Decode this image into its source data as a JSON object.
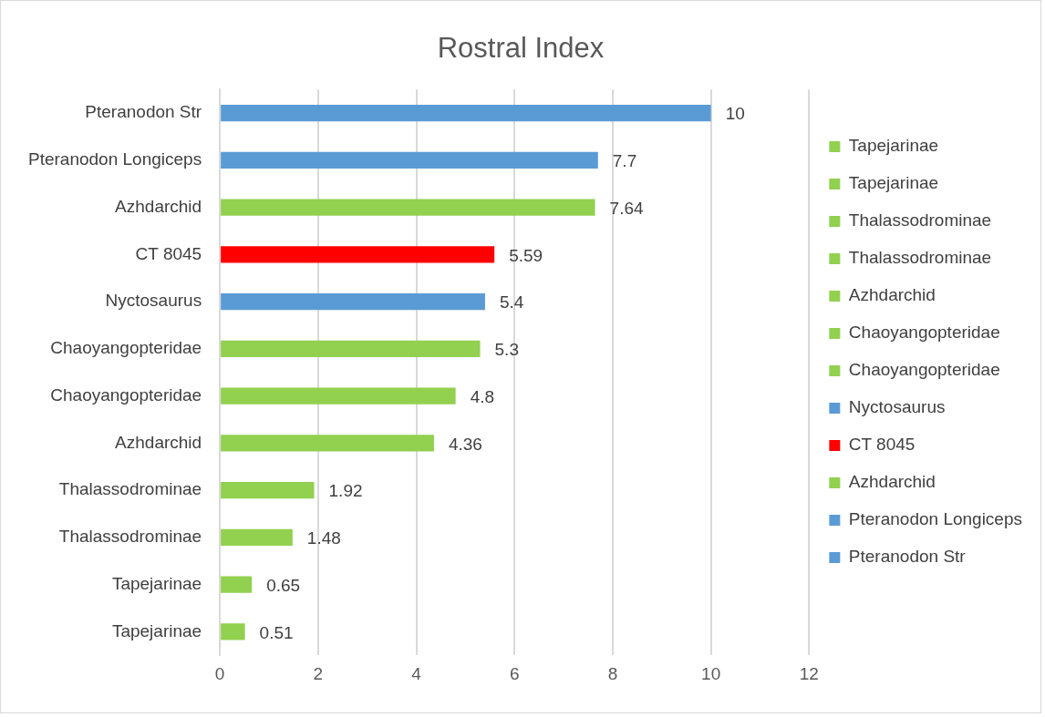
{
  "chart_data": {
    "type": "bar",
    "orientation": "horizontal",
    "stacked": true,
    "title": "Rostral Index",
    "categories": [
      "Pteranodon Str",
      "Pteranodon Longiceps",
      "Azhdarchid",
      "CT 8045",
      "Nyctosaurus",
      "Chaoyangopteridae",
      "Chaoyangopteridae",
      "Azhdarchid",
      "Thalassodrominae",
      "Thalassodrominae",
      "Tapejarinae",
      "Tapejarinae"
    ],
    "series": [
      {
        "name": "Tapejarinae",
        "color": "#92d050",
        "values": [
          null,
          null,
          null,
          null,
          null,
          null,
          null,
          null,
          null,
          null,
          null,
          0.51
        ]
      },
      {
        "name": "Tapejarinae",
        "color": "#92d050",
        "values": [
          null,
          null,
          null,
          null,
          null,
          null,
          null,
          null,
          null,
          null,
          0.65,
          null
        ]
      },
      {
        "name": "Thalassodrominae",
        "color": "#92d050",
        "values": [
          null,
          null,
          null,
          null,
          null,
          null,
          null,
          null,
          null,
          1.48,
          null,
          null
        ]
      },
      {
        "name": "Thalassodrominae",
        "color": "#92d050",
        "values": [
          null,
          null,
          null,
          null,
          null,
          null,
          null,
          null,
          1.92,
          null,
          null,
          null
        ]
      },
      {
        "name": "Azhdarchid",
        "color": "#92d050",
        "values": [
          null,
          null,
          null,
          null,
          null,
          null,
          null,
          4.36,
          null,
          null,
          null,
          null
        ]
      },
      {
        "name": "Chaoyangopteridae",
        "color": "#92d050",
        "values": [
          null,
          null,
          null,
          null,
          null,
          null,
          4.8,
          null,
          null,
          null,
          null,
          null
        ]
      },
      {
        "name": "Chaoyangopteridae",
        "color": "#92d050",
        "values": [
          null,
          null,
          null,
          null,
          null,
          5.3,
          null,
          null,
          null,
          null,
          null,
          null
        ]
      },
      {
        "name": "Nyctosaurus",
        "color": "#5b9bd5",
        "values": [
          null,
          null,
          null,
          null,
          5.4,
          null,
          null,
          null,
          null,
          null,
          null,
          null
        ]
      },
      {
        "name": "CT 8045",
        "color": "#ff0000",
        "values": [
          null,
          null,
          null,
          5.59,
          null,
          null,
          null,
          null,
          null,
          null,
          null,
          null
        ]
      },
      {
        "name": "Azhdarchid",
        "color": "#92d050",
        "values": [
          null,
          null,
          7.64,
          null,
          null,
          null,
          null,
          null,
          null,
          null,
          null,
          null
        ]
      },
      {
        "name": "Pteranodon Longiceps",
        "color": "#5b9bd5",
        "values": [
          null,
          7.7,
          null,
          null,
          null,
          null,
          null,
          null,
          null,
          null,
          null,
          null
        ]
      },
      {
        "name": "Pteranodon Str",
        "color": "#5b9bd5",
        "values": [
          10,
          null,
          null,
          null,
          null,
          null,
          null,
          null,
          null,
          null,
          null,
          null
        ]
      }
    ],
    "xlim": [
      0,
      12
    ],
    "xticks": [
      0,
      2,
      4,
      6,
      8,
      10,
      12
    ],
    "grid": "x",
    "legend": "right",
    "data_labels": true
  }
}
